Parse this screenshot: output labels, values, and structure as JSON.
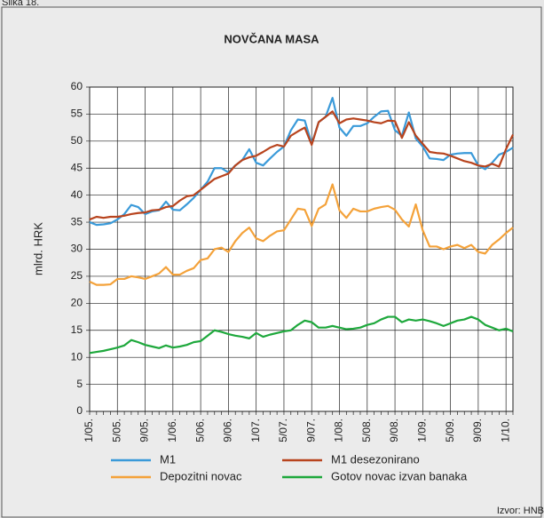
{
  "caption": "Slika 18.",
  "source": "Izvor: HNB",
  "chart_data": {
    "type": "line",
    "title": "NOVČANA MASA",
    "y_label": "mlrd. HRK",
    "ylim": [
      0,
      60
    ],
    "yticks": [
      0,
      5,
      10,
      15,
      20,
      25,
      30,
      35,
      40,
      45,
      50,
      55,
      60
    ],
    "grid": true,
    "legend": "bottom",
    "categories": [
      "1/05.",
      null,
      null,
      null,
      "5/05.",
      null,
      null,
      null,
      "9/05.",
      null,
      null,
      null,
      "1/06.",
      null,
      null,
      null,
      "5/06.",
      null,
      null,
      null,
      "9/06.",
      null,
      null,
      null,
      "1/07.",
      null,
      null,
      null,
      "5/07.",
      null,
      null,
      null,
      "9/07.",
      null,
      null,
      null,
      "1/08.",
      null,
      null,
      null,
      "5/08.",
      null,
      null,
      null,
      "9/08.",
      null,
      null,
      null,
      "1/09.",
      null,
      null,
      null,
      "5/09.",
      null,
      null,
      null,
      "9/09.",
      null,
      null,
      null,
      "1/10.",
      null
    ],
    "series": [
      {
        "name": "M1",
        "color": "#3a9ad9",
        "values": [
          35,
          34.5,
          34.6,
          34.8,
          35.5,
          36.5,
          38.2,
          37.8,
          36.5,
          37,
          37.2,
          38.8,
          37.3,
          37.2,
          38.3,
          39.5,
          41,
          42.5,
          45,
          45,
          44.2,
          45.5,
          46.5,
          48.5,
          46,
          45.5,
          46.8,
          48,
          49,
          52,
          54,
          53.8,
          49.5,
          53.5,
          54.5,
          58,
          52.5,
          51,
          52.8,
          52.8,
          53.3,
          54.5,
          55.5,
          55.6,
          52,
          51,
          55.3,
          50.5,
          49,
          46.8,
          46.7,
          46.5,
          47.5,
          47.7,
          47.8,
          47.8,
          45.5,
          44.8,
          46,
          47.5,
          48,
          48.8
        ]
      },
      {
        "name": "M1 desezonirano",
        "color": "#b8441e",
        "values": [
          35.5,
          36,
          35.8,
          36,
          36,
          36.2,
          36.5,
          36.7,
          36.8,
          37.2,
          37.3,
          37.8,
          38,
          39,
          39.8,
          40,
          41,
          42,
          43,
          43.5,
          44,
          45.5,
          46.5,
          47,
          47.3,
          48,
          48.8,
          49.3,
          49,
          51,
          51.8,
          52.5,
          49.3,
          53.5,
          54.5,
          55.5,
          53.3,
          54,
          54.2,
          54,
          53.8,
          53.5,
          53.3,
          53.8,
          53.7,
          50.6,
          53.5,
          51,
          49.5,
          48,
          47.8,
          47.7,
          47.3,
          46.8,
          46.3,
          46,
          45.5,
          45.3,
          45.8,
          45.3,
          48.5,
          51.2
        ]
      },
      {
        "name": "Depozitni novac",
        "color": "#f4a23a",
        "values": [
          24,
          23.4,
          23.4,
          23.5,
          24.5,
          24.5,
          25,
          24.8,
          24.5,
          25,
          25.5,
          26.7,
          25.3,
          25.3,
          26,
          26.5,
          28,
          28.3,
          30,
          30.3,
          29.5,
          31.5,
          33,
          34,
          32,
          31.5,
          32.5,
          33.3,
          33.5,
          35.5,
          37.5,
          37.3,
          34.3,
          37.5,
          38.3,
          42,
          37.2,
          35.8,
          37.5,
          37,
          37,
          37.5,
          37.8,
          38,
          37.3,
          35.5,
          34.2,
          38.3,
          33.5,
          30.5,
          30.5,
          30,
          30.5,
          30.8,
          30.2,
          30.8,
          29.5,
          29.2,
          30.8,
          31.8,
          33,
          34
        ]
      },
      {
        "name": "Gotov novac izvan banaka",
        "color": "#1ea83c",
        "values": [
          10.8,
          11,
          11.2,
          11.5,
          11.8,
          12.2,
          13.2,
          12.8,
          12.3,
          12,
          11.7,
          12.2,
          11.8,
          12,
          12.3,
          12.8,
          13,
          14,
          15,
          14.7,
          14.3,
          14,
          13.8,
          13.5,
          14.5,
          13.8,
          14.2,
          14.5,
          14.8,
          15,
          16,
          16.8,
          16.5,
          15.5,
          15.5,
          15.8,
          15.5,
          15.2,
          15.3,
          15.5,
          16,
          16.3,
          17,
          17.5,
          17.5,
          16.5,
          17,
          16.8,
          17,
          16.7,
          16.3,
          15.8,
          16.3,
          16.8,
          17,
          17.5,
          17,
          16,
          15.5,
          15,
          15.3,
          14.8
        ]
      }
    ]
  }
}
